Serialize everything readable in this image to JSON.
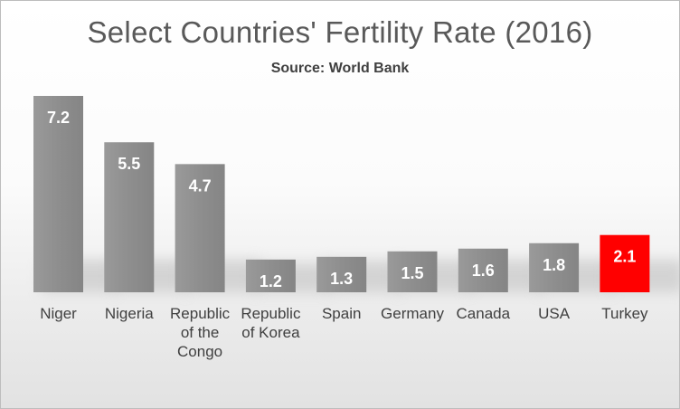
{
  "chart_data": {
    "type": "bar",
    "title": "Select Countries' Fertility Rate (2016)",
    "subtitle": "Source: World Bank",
    "categories": [
      [
        "Niger"
      ],
      [
        "Nigeria"
      ],
      [
        "Republic",
        "of the",
        "Congo"
      ],
      [
        "Republic",
        "of Korea"
      ],
      [
        "Spain"
      ],
      [
        "Germany"
      ],
      [
        "Canada"
      ],
      [
        "USA"
      ],
      [
        "Turkey"
      ]
    ],
    "values": [
      7.2,
      5.5,
      4.7,
      1.2,
      1.3,
      1.5,
      1.6,
      1.8,
      2.1
    ],
    "data_labels": [
      "7.2",
      "5.5",
      "4.7",
      "1.2",
      "1.3",
      "1.5",
      "1.6",
      "1.8",
      "2.1"
    ],
    "highlight_index": 8,
    "ylim": [
      0,
      7.2
    ],
    "grid": false,
    "colors": {
      "bar": "#8f8f8f",
      "highlight": "#ff0000",
      "label": "#ffffff",
      "text": "#404040"
    }
  }
}
